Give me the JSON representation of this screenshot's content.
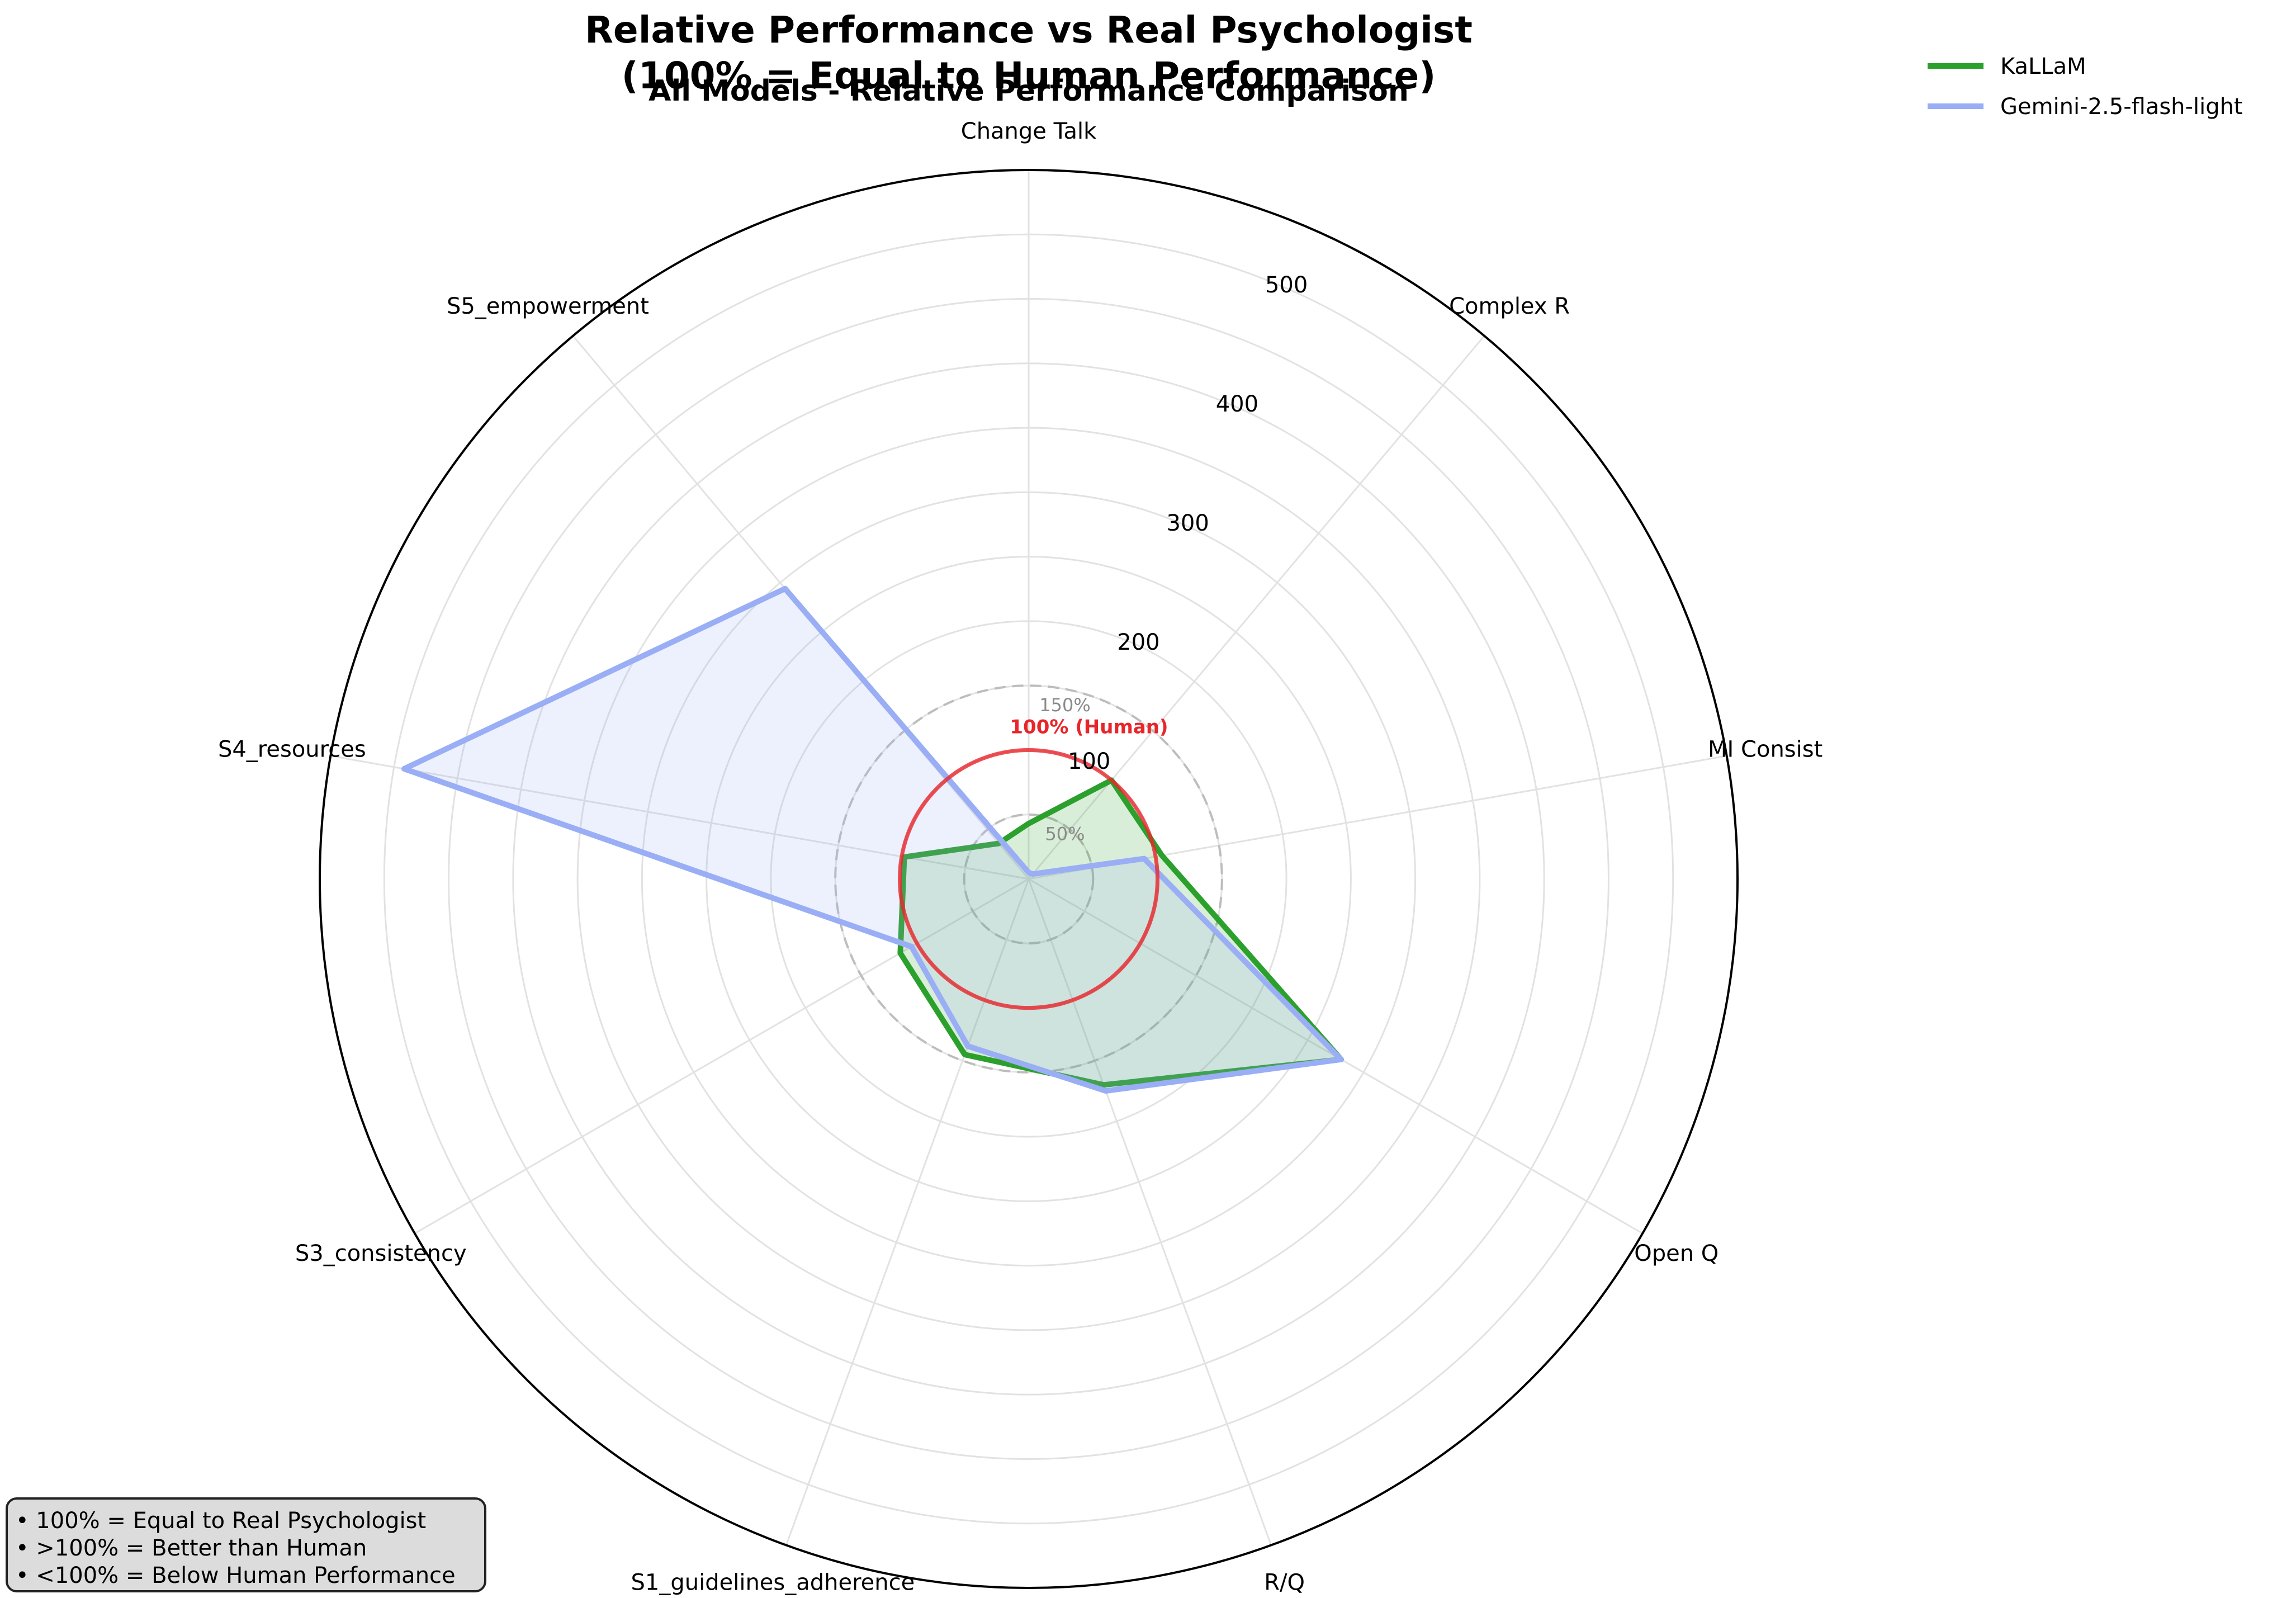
{
  "chart_data": {
    "type": "radar",
    "title": "Relative Performance vs Real Psychologist",
    "subtitle": "(100% = Equal to Human Performance)",
    "axes_title": "All Models - Relative Performance Comparison",
    "categories": [
      "Change Talk",
      "Complex R",
      "MI Consist",
      "Open Q",
      "R/Q",
      "S1_guidelines_adherence",
      "S3_consistency",
      "S4_resources",
      "S5_empowerment"
    ],
    "radial_ticks": [
      100,
      200,
      300,
      400,
      500
    ],
    "radial_max": 550,
    "reference_rings": [
      {
        "value": 50,
        "label": "50%"
      },
      {
        "value": 150,
        "label": "150%"
      }
    ],
    "human_line": {
      "value": 100,
      "label": "100% (Human)",
      "color": "#e8262a"
    },
    "series": [
      {
        "name": "KaLLaM",
        "color": "#2ca02c",
        "values": [
          43,
          100,
          105,
          280,
          170,
          145,
          115,
          98,
          36
        ]
      },
      {
        "name": "Gemini-2.5-flash-light",
        "color": "#9aaef5",
        "values": [
          5,
          5,
          91,
          280,
          175,
          138,
          105,
          492,
          294
        ]
      }
    ],
    "legend_position": "top-right",
    "notes": [
      "• 100% = Equal to Real Psychologist",
      "• >100% = Better than Human",
      "• <100% = Below Human Performance"
    ]
  }
}
